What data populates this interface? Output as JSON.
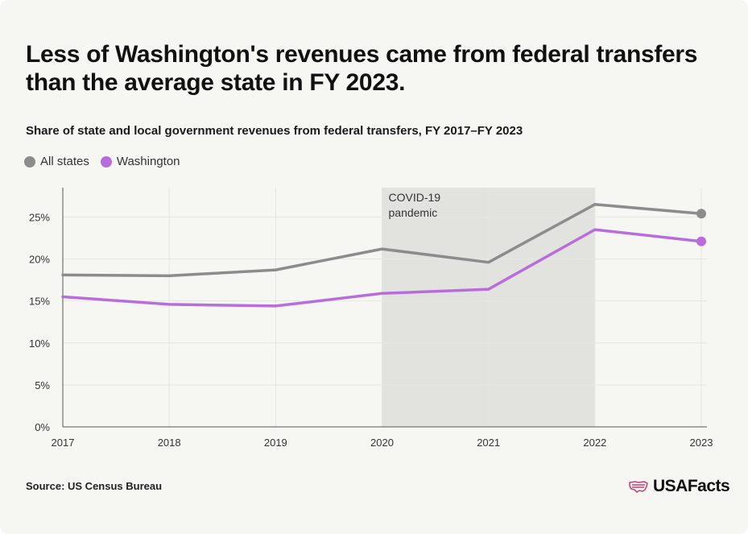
{
  "title": "Less of Washington's revenues came from federal transfers than the average state in FY 2023.",
  "subtitle": "Share of state and local government revenues from federal transfers, FY 2017–FY 2023",
  "legend": [
    {
      "label": "All states",
      "color": "#8c8c8c"
    },
    {
      "label": "Washington",
      "color": "#b86ddc"
    }
  ],
  "annotation": {
    "line1": "COVID-19",
    "line2": "pandemic",
    "x_start": 2020,
    "x_end": 2022
  },
  "source": "Source: US Census Bureau",
  "brand": {
    "name": "USAFacts",
    "icon": "us-flag-map-icon",
    "icon_color": "#c9447a"
  },
  "chart_data": {
    "type": "line",
    "x": [
      2017,
      2018,
      2019,
      2020,
      2021,
      2022,
      2023
    ],
    "x_tick_labels": [
      "2017",
      "2018",
      "2019",
      "2020",
      "2021",
      "2022",
      "2023"
    ],
    "y_ticks": [
      0,
      5,
      10,
      15,
      20,
      25
    ],
    "y_tick_labels": [
      "0%",
      "5%",
      "10%",
      "15%",
      "20%",
      "25%"
    ],
    "ylim": [
      0,
      28.5
    ],
    "grid": true,
    "legend_placement": "top-left",
    "series": [
      {
        "name": "All states",
        "color": "#8c8c8c",
        "values": [
          18.1,
          18.0,
          18.7,
          21.2,
          19.6,
          26.5,
          25.4
        ]
      },
      {
        "name": "Washington",
        "color": "#b86ddc",
        "values": [
          15.5,
          14.6,
          14.4,
          15.9,
          16.4,
          23.5,
          22.1
        ]
      }
    ]
  }
}
